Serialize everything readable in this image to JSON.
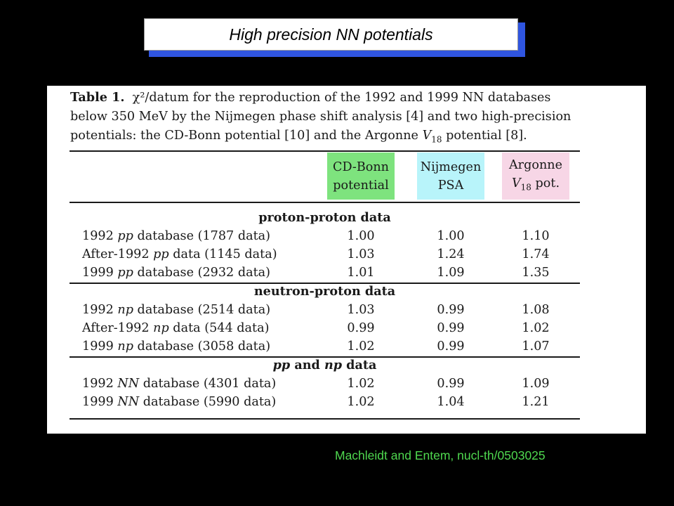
{
  "title": "High precision NN potentials",
  "caption": {
    "label": "Table 1.",
    "line1": "χ²/datum for the reproduction of the 1992 and 1999 NN databases",
    "line2": "below 350 MeV by the Nijmegen phase shift analysis [4] and two high-precision",
    "line3a": "potentials: the CD-Bonn potential [10] and the Argonne ",
    "line3b": "V",
    "line3c": "18",
    "line3d": " potential [8]."
  },
  "columns": {
    "col1": [
      "CD-Bonn",
      "potential"
    ],
    "col2": [
      "Nijmegen",
      "PSA"
    ],
    "col3": [
      "Argonne",
      "V",
      "18",
      " pot."
    ]
  },
  "colors": {
    "green": "#7ee37e",
    "cyan": "#b8f4fa",
    "pink": "#f7d6e6",
    "credit": "#4fd84f",
    "title_shadow": "#2f55e0"
  },
  "sections": [
    {
      "heading": "proton-proton data",
      "rows": [
        {
          "pre": "1992 ",
          "it": "pp",
          "post": " database (1787 data)",
          "v": [
            "1.00",
            "1.00",
            "1.10"
          ]
        },
        {
          "pre": "After-1992 ",
          "it": "pp",
          "post": " data (1145 data)",
          "v": [
            "1.03",
            "1.24",
            "1.74"
          ]
        },
        {
          "pre": "1999 ",
          "it": "pp",
          "post": " database (2932 data)",
          "v": [
            "1.01",
            "1.09",
            "1.35"
          ]
        }
      ]
    },
    {
      "heading": "neutron-proton data",
      "rows": [
        {
          "pre": "1992 ",
          "it": "np",
          "post": " database (2514 data)",
          "v": [
            "1.03",
            "0.99",
            "1.08"
          ]
        },
        {
          "pre": "After-1992 ",
          "it": "np",
          "post": " data (544 data)",
          "v": [
            "0.99",
            "0.99",
            "1.02"
          ]
        },
        {
          "pre": "1999 ",
          "it": "np",
          "post": " database (3058 data)",
          "v": [
            "1.02",
            "0.99",
            "1.07"
          ]
        }
      ]
    },
    {
      "heading_parts": [
        "pp",
        " and ",
        "np",
        " data"
      ],
      "rows": [
        {
          "pre": "1992 ",
          "it": "NN",
          "post": " database (4301 data)",
          "v": [
            "1.02",
            "0.99",
            "1.09"
          ]
        },
        {
          "pre": "1999 ",
          "it": "NN",
          "post": " database (5990 data)",
          "v": [
            "1.02",
            "1.04",
            "1.21"
          ]
        }
      ]
    }
  ],
  "credit": "Machleidt and Entem, nucl-th/0503025"
}
